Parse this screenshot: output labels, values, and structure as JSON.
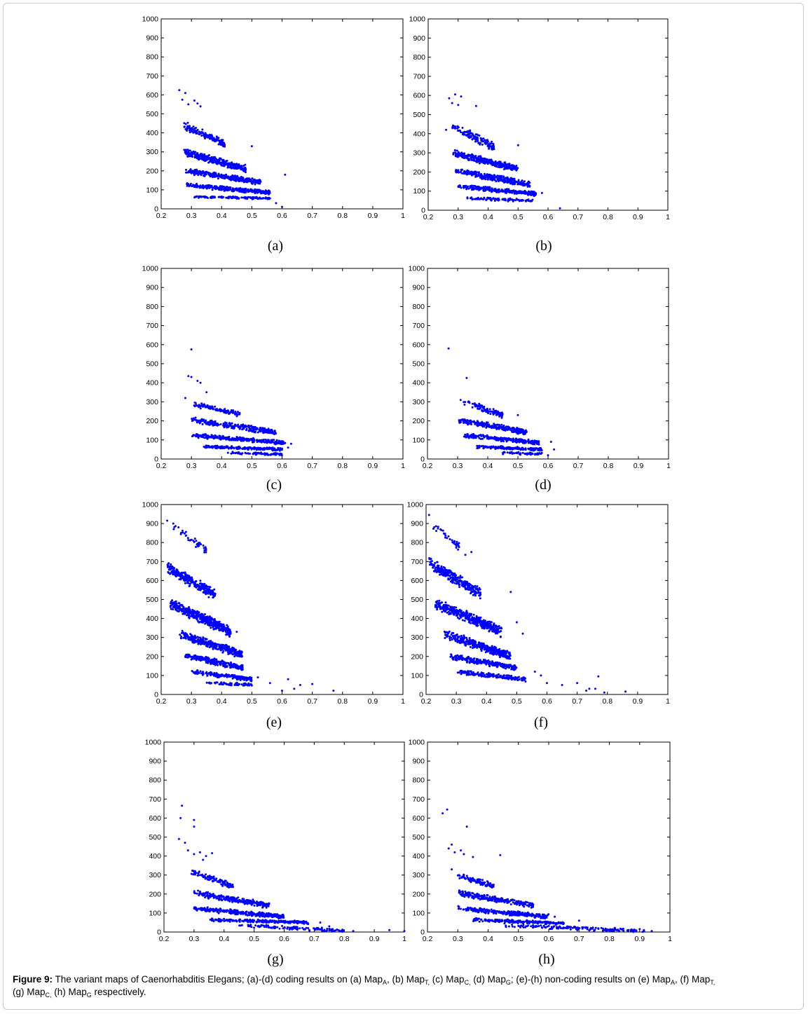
{
  "figure": {
    "caption": {
      "label": "Figure 9:",
      "segments": [
        {
          "t": " The variant maps of Caenorhabditis Elegans; (a)-(d) coding results on (a) Map"
        },
        {
          "sub": "A"
        },
        {
          "t": ", (b) Map"
        },
        {
          "sub": "T,"
        },
        {
          "t": " (c) Map"
        },
        {
          "sub": "C,"
        },
        {
          "t": " (d) Map"
        },
        {
          "sub": "G"
        },
        {
          "t": "; (e)-(h) non-coding results on (e) Map"
        },
        {
          "sub": "A"
        },
        {
          "t": ", (f) Map"
        },
        {
          "sub": "T,"
        },
        {
          "br": true
        },
        {
          "t": "(g) Map"
        },
        {
          "sub": "C,"
        },
        {
          "t": " (h) Map"
        },
        {
          "sub": "G"
        },
        {
          "t": " respectively."
        }
      ]
    },
    "colors": {
      "marker": "#0000ff",
      "axis": "#000000",
      "frame_border": "#c9c9c9"
    }
  },
  "chart_data": [
    {
      "id": "a",
      "panel_label": "(a)",
      "type": "scatter",
      "xlim": [
        0.2,
        1
      ],
      "ylim": [
        0,
        1000
      ],
      "xticks": [
        "0.2",
        "0.3",
        "0.4",
        "0.5",
        "0.6",
        "0.7",
        "0.8",
        "0.9",
        "1"
      ],
      "yticks": [
        "0",
        "100",
        "200",
        "300",
        "400",
        "500",
        "600",
        "700",
        "800",
        "900",
        "1000"
      ],
      "clusters": [
        {
          "x": [
            0.275,
            0.41
          ],
          "y": [
            440,
            340
          ],
          "n": 150
        },
        {
          "x": [
            0.275,
            0.48
          ],
          "y": [
            300,
            210
          ],
          "n": 320
        },
        {
          "x": [
            0.28,
            0.53
          ],
          "y": [
            200,
            140
          ],
          "n": 300
        },
        {
          "x": [
            0.285,
            0.56
          ],
          "y": [
            125,
            85
          ],
          "n": 300
        },
        {
          "x": [
            0.31,
            0.56
          ],
          "y": [
            63,
            55
          ],
          "n": 110
        }
      ],
      "points": [
        {
          "x": 0.26,
          "y": 625
        },
        {
          "x": 0.28,
          "y": 610
        },
        {
          "x": 0.27,
          "y": 575
        },
        {
          "x": 0.31,
          "y": 570
        },
        {
          "x": 0.32,
          "y": 555
        },
        {
          "x": 0.33,
          "y": 540
        },
        {
          "x": 0.29,
          "y": 550
        },
        {
          "x": 0.61,
          "y": 180
        },
        {
          "x": 0.5,
          "y": 330
        },
        {
          "x": 0.58,
          "y": 30
        },
        {
          "x": 0.6,
          "y": 10
        }
      ]
    },
    {
      "id": "b",
      "panel_label": "(b)",
      "type": "scatter",
      "xlim": [
        0.2,
        1
      ],
      "ylim": [
        0,
        1000
      ],
      "xticks": [
        "0.2",
        "0.3",
        "0.4",
        "0.5",
        "0.6",
        "0.7",
        "0.8",
        "0.9",
        "1"
      ],
      "yticks": [
        "0",
        "100",
        "200",
        "300",
        "400",
        "500",
        "600",
        "700",
        "800",
        "900",
        "1000"
      ],
      "clusters": [
        {
          "x": [
            0.28,
            0.42
          ],
          "y": [
            440,
            330
          ],
          "n": 140
        },
        {
          "x": [
            0.28,
            0.5
          ],
          "y": [
            300,
            215
          ],
          "n": 320
        },
        {
          "x": [
            0.29,
            0.54
          ],
          "y": [
            205,
            135
          ],
          "n": 300
        },
        {
          "x": [
            0.3,
            0.56
          ],
          "y": [
            125,
            85
          ],
          "n": 280
        },
        {
          "x": [
            0.33,
            0.55
          ],
          "y": [
            63,
            50
          ],
          "n": 100
        }
      ],
      "points": [
        {
          "x": 0.27,
          "y": 585
        },
        {
          "x": 0.29,
          "y": 605
        },
        {
          "x": 0.31,
          "y": 595
        },
        {
          "x": 0.28,
          "y": 560
        },
        {
          "x": 0.3,
          "y": 550
        },
        {
          "x": 0.36,
          "y": 545
        },
        {
          "x": 0.26,
          "y": 420
        },
        {
          "x": 0.58,
          "y": 90
        },
        {
          "x": 0.64,
          "y": 10
        },
        {
          "x": 0.5,
          "y": 340
        }
      ]
    },
    {
      "id": "c",
      "panel_label": "(c)",
      "type": "scatter",
      "xlim": [
        0.2,
        1
      ],
      "ylim": [
        0,
        1000
      ],
      "xticks": [
        "0.2",
        "0.3",
        "0.4",
        "0.5",
        "0.6",
        "0.7",
        "0.8",
        "0.9",
        "1"
      ],
      "yticks": [
        "0",
        "100",
        "200",
        "300",
        "400",
        "500",
        "600",
        "700",
        "800",
        "900",
        "1000"
      ],
      "clusters": [
        {
          "x": [
            0.3,
            0.46
          ],
          "y": [
            290,
            235
          ],
          "n": 110
        },
        {
          "x": [
            0.3,
            0.58
          ],
          "y": [
            205,
            140
          ],
          "n": 260
        },
        {
          "x": [
            0.3,
            0.61
          ],
          "y": [
            125,
            85
          ],
          "n": 280
        },
        {
          "x": [
            0.34,
            0.6
          ],
          "y": [
            65,
            50
          ],
          "n": 200
        },
        {
          "x": [
            0.42,
            0.6
          ],
          "y": [
            32,
            25
          ],
          "n": 80
        }
      ],
      "points": [
        {
          "x": 0.3,
          "y": 575
        },
        {
          "x": 0.29,
          "y": 435
        },
        {
          "x": 0.3,
          "y": 430
        },
        {
          "x": 0.32,
          "y": 410
        },
        {
          "x": 0.33,
          "y": 400
        },
        {
          "x": 0.35,
          "y": 350
        },
        {
          "x": 0.28,
          "y": 320
        },
        {
          "x": 0.63,
          "y": 80
        },
        {
          "x": 0.62,
          "y": 60
        }
      ]
    },
    {
      "id": "d",
      "panel_label": "(d)",
      "type": "scatter",
      "xlim": [
        0.2,
        1
      ],
      "ylim": [
        0,
        1000
      ],
      "xticks": [
        "0.2",
        "0.3",
        "0.4",
        "0.5",
        "0.6",
        "0.7",
        "0.8",
        "0.9",
        "1"
      ],
      "yticks": [
        "0",
        "100",
        "200",
        "300",
        "400",
        "500",
        "600",
        "700",
        "800",
        "900",
        "1000"
      ],
      "clusters": [
        {
          "x": [
            0.32,
            0.45
          ],
          "y": [
            300,
            230
          ],
          "n": 100
        },
        {
          "x": [
            0.3,
            0.53
          ],
          "y": [
            205,
            140
          ],
          "n": 250
        },
        {
          "x": [
            0.32,
            0.57
          ],
          "y": [
            125,
            85
          ],
          "n": 260
        },
        {
          "x": [
            0.36,
            0.58
          ],
          "y": [
            65,
            50
          ],
          "n": 180
        },
        {
          "x": [
            0.45,
            0.58
          ],
          "y": [
            32,
            25
          ],
          "n": 60
        }
      ],
      "points": [
        {
          "x": 0.27,
          "y": 580
        },
        {
          "x": 0.33,
          "y": 425
        },
        {
          "x": 0.31,
          "y": 310
        },
        {
          "x": 0.5,
          "y": 230
        },
        {
          "x": 0.61,
          "y": 90
        },
        {
          "x": 0.62,
          "y": 50
        },
        {
          "x": 0.6,
          "y": 20
        }
      ]
    },
    {
      "id": "e",
      "panel_label": "(e)",
      "type": "scatter",
      "xlim": [
        0.2,
        1
      ],
      "ylim": [
        0,
        1000
      ],
      "xticks": [
        "0.2",
        "0.3",
        "0.4",
        "0.5",
        "0.6",
        "0.7",
        "0.8",
        "0.9",
        "1"
      ],
      "yticks": [
        "0",
        "100",
        "200",
        "300",
        "400",
        "500",
        "600",
        "700",
        "800",
        "900",
        "1000"
      ],
      "clusters": [
        {
          "x": [
            0.24,
            0.35
          ],
          "y": [
            880,
            760
          ],
          "n": 40
        },
        {
          "x": [
            0.22,
            0.38
          ],
          "y": [
            670,
            520
          ],
          "n": 300
        },
        {
          "x": [
            0.23,
            0.43
          ],
          "y": [
            480,
            330
          ],
          "n": 420
        },
        {
          "x": [
            0.26,
            0.47
          ],
          "y": [
            320,
            210
          ],
          "n": 360
        },
        {
          "x": [
            0.28,
            0.47
          ],
          "y": [
            205,
            140
          ],
          "n": 260
        },
        {
          "x": [
            0.3,
            0.5
          ],
          "y": [
            120,
            80
          ],
          "n": 180
        },
        {
          "x": [
            0.35,
            0.5
          ],
          "y": [
            62,
            50
          ],
          "n": 70
        }
      ],
      "points": [
        {
          "x": 0.22,
          "y": 915
        },
        {
          "x": 0.24,
          "y": 900
        },
        {
          "x": 0.52,
          "y": 90
        },
        {
          "x": 0.56,
          "y": 60
        },
        {
          "x": 0.6,
          "y": 20
        },
        {
          "x": 0.62,
          "y": 80
        },
        {
          "x": 0.66,
          "y": 50
        },
        {
          "x": 0.7,
          "y": 55
        },
        {
          "x": 0.77,
          "y": 20
        },
        {
          "x": 0.64,
          "y": 30
        },
        {
          "x": 0.45,
          "y": 330
        }
      ]
    },
    {
      "id": "f",
      "panel_label": "(f)",
      "type": "scatter",
      "xlim": [
        0.2,
        1
      ],
      "ylim": [
        0,
        1000
      ],
      "xticks": [
        "0.2",
        "0.3",
        "0.4",
        "0.5",
        "0.6",
        "0.7",
        "0.8",
        "0.9",
        "1"
      ],
      "yticks": [
        "0",
        "100",
        "200",
        "300",
        "400",
        "500",
        "600",
        "700",
        "800",
        "900",
        "1000"
      ],
      "clusters": [
        {
          "x": [
            0.22,
            0.31
          ],
          "y": [
            900,
            780
          ],
          "n": 35
        },
        {
          "x": [
            0.21,
            0.38
          ],
          "y": [
            690,
            530
          ],
          "n": 280
        },
        {
          "x": [
            0.23,
            0.45
          ],
          "y": [
            480,
            330
          ],
          "n": 400
        },
        {
          "x": [
            0.26,
            0.48
          ],
          "y": [
            320,
            200
          ],
          "n": 360
        },
        {
          "x": [
            0.28,
            0.5
          ],
          "y": [
            200,
            140
          ],
          "n": 260
        },
        {
          "x": [
            0.3,
            0.53
          ],
          "y": [
            120,
            80
          ],
          "n": 180
        }
      ],
      "points": [
        {
          "x": 0.21,
          "y": 945
        },
        {
          "x": 0.35,
          "y": 750
        },
        {
          "x": 0.33,
          "y": 735
        },
        {
          "x": 0.48,
          "y": 540
        },
        {
          "x": 0.5,
          "y": 380
        },
        {
          "x": 0.52,
          "y": 320
        },
        {
          "x": 0.56,
          "y": 120
        },
        {
          "x": 0.58,
          "y": 100
        },
        {
          "x": 0.6,
          "y": 60
        },
        {
          "x": 0.65,
          "y": 50
        },
        {
          "x": 0.7,
          "y": 60
        },
        {
          "x": 0.73,
          "y": 20
        },
        {
          "x": 0.76,
          "y": 30
        },
        {
          "x": 0.77,
          "y": 95
        },
        {
          "x": 0.79,
          "y": 10
        },
        {
          "x": 0.86,
          "y": 15
        },
        {
          "x": 0.74,
          "y": 30
        }
      ]
    },
    {
      "id": "g",
      "panel_label": "(g)",
      "type": "scatter",
      "xlim": [
        0.2,
        1
      ],
      "ylim": [
        0,
        1000
      ],
      "xticks": [
        "0.2",
        "0.3",
        "0.4",
        "0.5",
        "0.6",
        "0.7",
        "0.8",
        "0.9",
        "1"
      ],
      "yticks": [
        "0",
        "100",
        "200",
        "300",
        "400",
        "500",
        "600",
        "700",
        "800",
        "900",
        "1000"
      ],
      "clusters": [
        {
          "x": [
            0.29,
            0.43
          ],
          "y": [
            320,
            240
          ],
          "n": 110
        },
        {
          "x": [
            0.3,
            0.55
          ],
          "y": [
            205,
            140
          ],
          "n": 260
        },
        {
          "x": [
            0.3,
            0.6
          ],
          "y": [
            125,
            80
          ],
          "n": 300
        },
        {
          "x": [
            0.35,
            0.68
          ],
          "y": [
            65,
            50
          ],
          "n": 240
        },
        {
          "x": [
            0.45,
            0.8
          ],
          "y": [
            35,
            5
          ],
          "n": 120
        }
      ],
      "points": [
        {
          "x": 0.26,
          "y": 665
        },
        {
          "x": 0.255,
          "y": 600
        },
        {
          "x": 0.3,
          "y": 590
        },
        {
          "x": 0.3,
          "y": 555
        },
        {
          "x": 0.25,
          "y": 490
        },
        {
          "x": 0.27,
          "y": 470
        },
        {
          "x": 0.28,
          "y": 430
        },
        {
          "x": 0.3,
          "y": 410
        },
        {
          "x": 0.32,
          "y": 420
        },
        {
          "x": 0.34,
          "y": 400
        },
        {
          "x": 0.36,
          "y": 415
        },
        {
          "x": 0.33,
          "y": 380
        },
        {
          "x": 0.83,
          "y": 5
        },
        {
          "x": 0.95,
          "y": 10
        },
        {
          "x": 1.0,
          "y": 5
        },
        {
          "x": 0.72,
          "y": 50
        },
        {
          "x": 0.75,
          "y": 30
        }
      ]
    },
    {
      "id": "h",
      "panel_label": "(h)",
      "type": "scatter",
      "xlim": [
        0.2,
        1
      ],
      "ylim": [
        0,
        1000
      ],
      "xticks": [
        "0.2",
        "0.3",
        "0.4",
        "0.5",
        "0.6",
        "0.7",
        "0.8",
        "0.9",
        "1"
      ],
      "yticks": [
        "0",
        "100",
        "200",
        "300",
        "400",
        "500",
        "600",
        "700",
        "800",
        "900",
        "1000"
      ],
      "clusters": [
        {
          "x": [
            0.3,
            0.42
          ],
          "y": [
            300,
            240
          ],
          "n": 100
        },
        {
          "x": [
            0.3,
            0.55
          ],
          "y": [
            205,
            140
          ],
          "n": 250
        },
        {
          "x": [
            0.3,
            0.6
          ],
          "y": [
            125,
            80
          ],
          "n": 280
        },
        {
          "x": [
            0.35,
            0.65
          ],
          "y": [
            65,
            45
          ],
          "n": 220
        },
        {
          "x": [
            0.45,
            0.92
          ],
          "y": [
            35,
            5
          ],
          "n": 160
        }
      ],
      "points": [
        {
          "x": 0.25,
          "y": 625
        },
        {
          "x": 0.265,
          "y": 645
        },
        {
          "x": 0.33,
          "y": 555
        },
        {
          "x": 0.27,
          "y": 440
        },
        {
          "x": 0.28,
          "y": 460
        },
        {
          "x": 0.29,
          "y": 420
        },
        {
          "x": 0.31,
          "y": 430
        },
        {
          "x": 0.32,
          "y": 410
        },
        {
          "x": 0.35,
          "y": 395
        },
        {
          "x": 0.44,
          "y": 405
        },
        {
          "x": 0.28,
          "y": 330
        },
        {
          "x": 0.94,
          "y": 5
        },
        {
          "x": 0.88,
          "y": 10
        },
        {
          "x": 0.9,
          "y": 15
        },
        {
          "x": 0.62,
          "y": 80
        },
        {
          "x": 0.7,
          "y": 60
        }
      ]
    }
  ]
}
